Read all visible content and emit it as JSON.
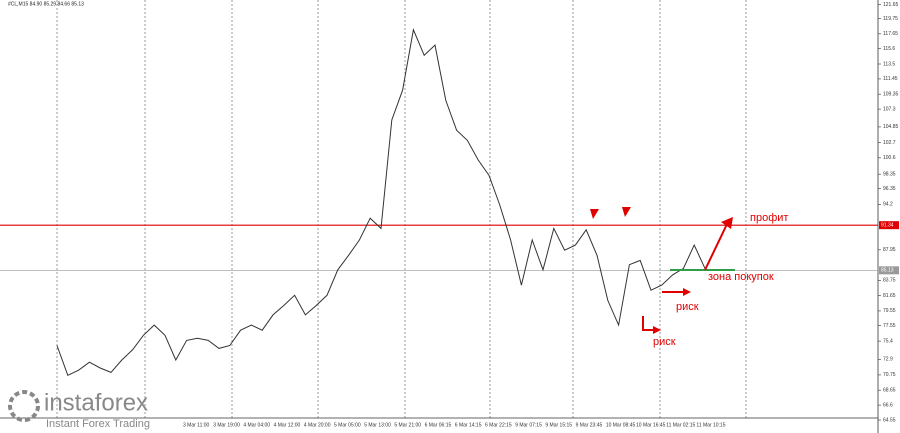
{
  "header": "#CL,M15  84.90 85.29 84.66 85.13",
  "logo": {
    "brand": "instaforex",
    "tagline": "Instant Forex Trading"
  },
  "chart_data": {
    "type": "line",
    "values": [
      74.8,
      70.7,
      71.4,
      72.5,
      71.7,
      71.1,
      72.8,
      74.2,
      76.2,
      77.6,
      76.2,
      72.8,
      75.5,
      75.8,
      75.5,
      74.4,
      74.8,
      76.9,
      77.6,
      76.9,
      79.0,
      80.3,
      81.7,
      79.0,
      80.3,
      81.7,
      85.2,
      87.2,
      89.3,
      92.3,
      90.9,
      105.8,
      109.9,
      118.2,
      114.7,
      116.1,
      108.5,
      104.4,
      103.0,
      100.3,
      98.2,
      94.1,
      89.3,
      83.1,
      89.3,
      85.2,
      90.9,
      87.9,
      88.6,
      90.7,
      87.2,
      81.0,
      77.6,
      85.9,
      86.5,
      82.4,
      83.1,
      84.5,
      85.4,
      88.6,
      85.4
    ],
    "color": "#333333",
    "ylim": [
      64.0,
      122.3
    ],
    "yticks": [
      121.65,
      119.75,
      117.65,
      115.6,
      113.5,
      111.45,
      109.35,
      107.3,
      104.85,
      102.7,
      100.6,
      98.35,
      96.35,
      94.2,
      87.95,
      83.75,
      81.65,
      79.55,
      77.55,
      75.4,
      72.9,
      70.75,
      68.65,
      66.6,
      64.55
    ],
    "x_labels": [
      "3 Mar 11:00",
      "3 Mar 19:00",
      "4 Mar 04:00",
      "4 Mar 12:00",
      "4 Mar 20:00",
      "5 Mar 05:00",
      "5 Mar 13:00",
      "5 Mar 21:00",
      "6 Mar 06:15",
      "6 Mar 14:15",
      "6 Mar 22:15",
      "9 Mar 07:15",
      "9 Mar 15:15",
      "9 Mar 23:45",
      "10 Mar 08:45",
      "10 Mar 16:45",
      "11 Mar 02:15",
      "11 Mar 10:15"
    ],
    "levels": [
      {
        "value": 91.34,
        "color": "#e00000"
      },
      {
        "value": 85.13,
        "color": "#999999"
      }
    ],
    "annotations": {
      "profit": "профит",
      "buy_zone": "зона покупок",
      "risk_1": "риск",
      "risk_2": "риск"
    }
  }
}
